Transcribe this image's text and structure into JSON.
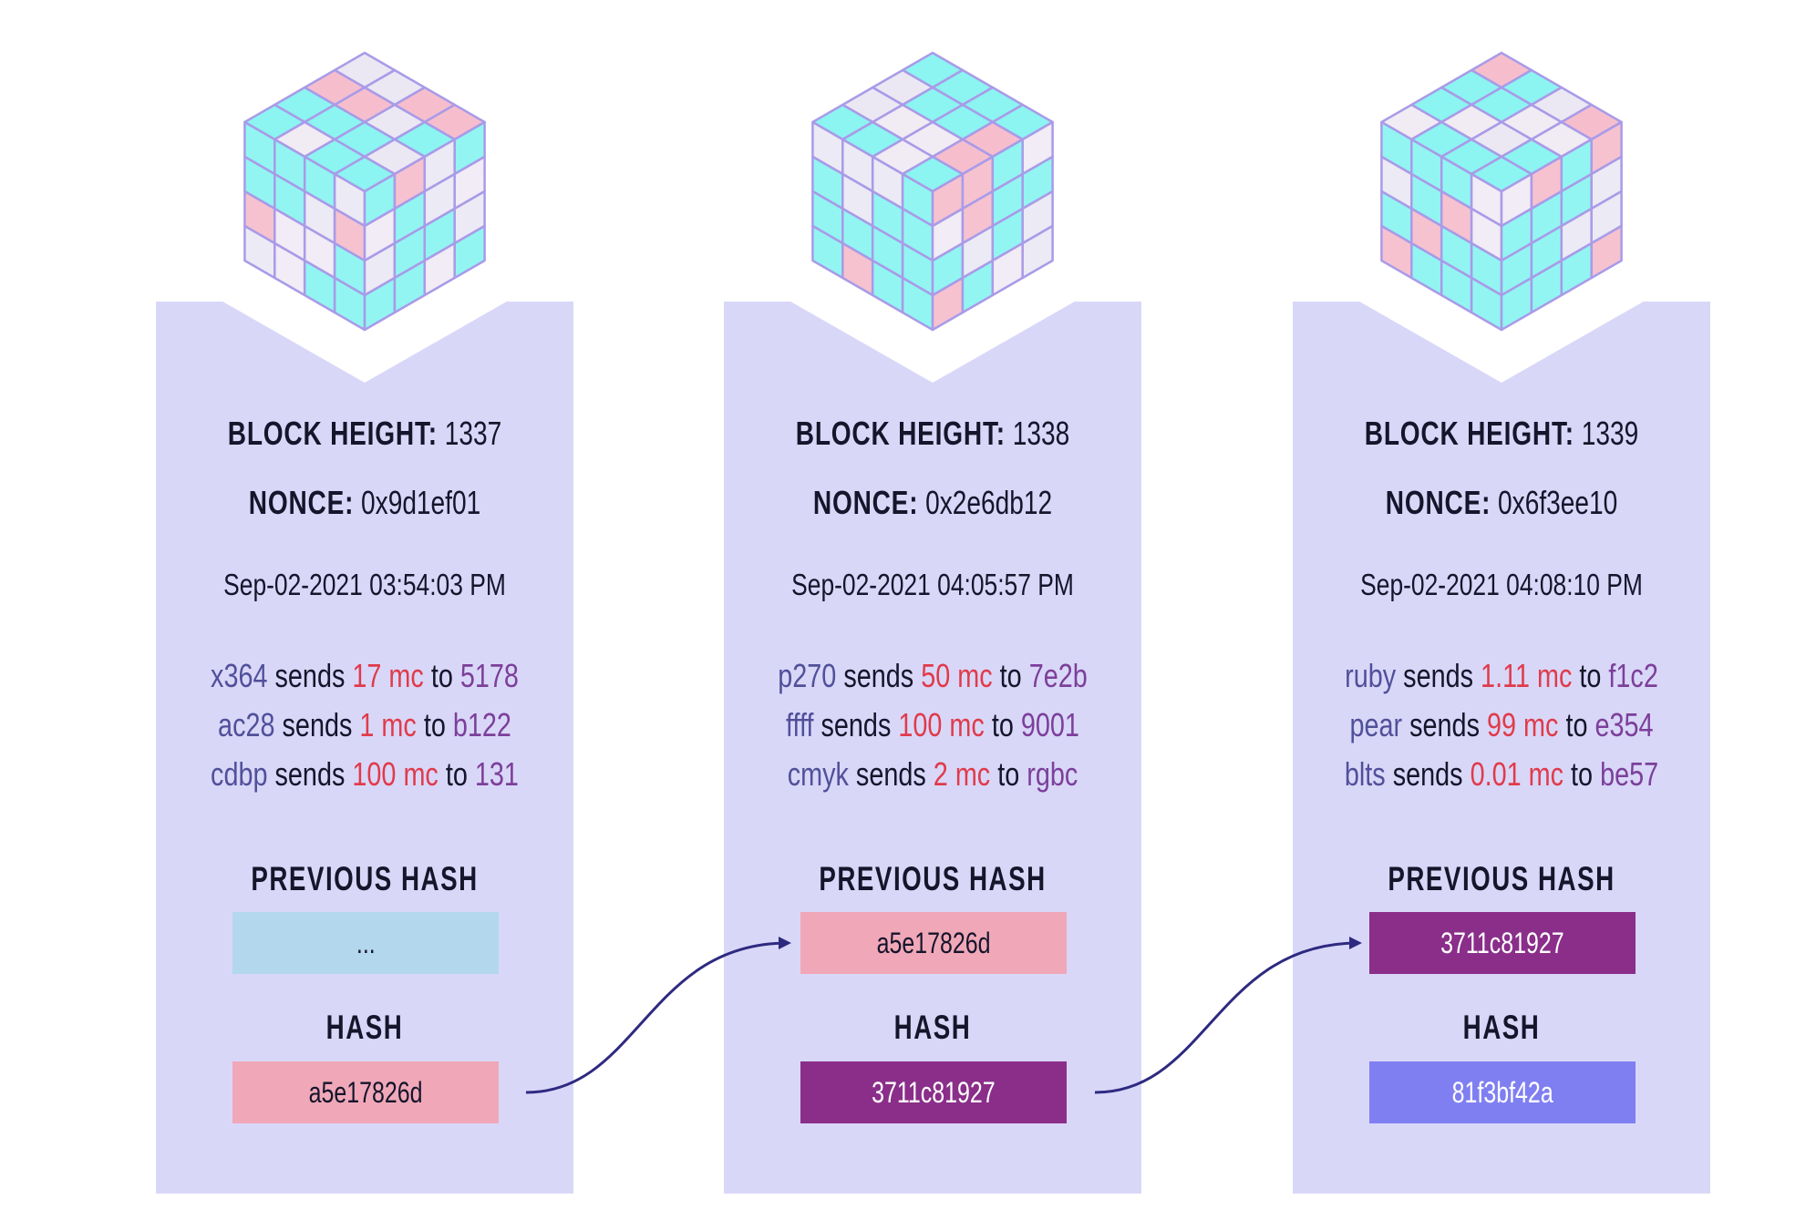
{
  "colors": {
    "block_bg": "#d9d7f8",
    "hash_blue": "#b3d8ee",
    "hash_pink": "#f0a8b8",
    "hash_purple": "#8a2e8a",
    "hash_periwinkle": "#7f7ff2",
    "arrow": "#2e2a80",
    "amount_red": "#e03b4b",
    "sender_blue": "#50509a"
  },
  "blocks": [
    {
      "height_label": "BLOCK HEIGHT:",
      "height_value": "1337",
      "nonce_label": "NONCE:",
      "nonce_value": "0x9d1ef01",
      "timestamp": "Sep-02-2021 03:54:03 PM",
      "transactions": [
        {
          "from": "x364",
          "sends": "sends",
          "amount": "17 mc",
          "to_word": "to",
          "to": "5178"
        },
        {
          "from": "ac28",
          "sends": "sends",
          "amount": "1 mc",
          "to_word": "to",
          "to": "b122"
        },
        {
          "from": "cdbp",
          "sends": "sends",
          "amount": "100 mc",
          "to_word": "to",
          "to": "131"
        }
      ],
      "previous_hash_label": "PREVIOUS HASH",
      "previous_hash": "...",
      "hash_label": "HASH",
      "hash": "a5e17826d"
    },
    {
      "height_label": "BLOCK HEIGHT:",
      "height_value": "1338",
      "nonce_label": "NONCE:",
      "nonce_value": "0x2e6db12",
      "timestamp": "Sep-02-2021 04:05:57 PM",
      "transactions": [
        {
          "from": "p270",
          "sends": "sends",
          "amount": "50 mc",
          "to_word": "to",
          "to": "7e2b"
        },
        {
          "from": "ffff",
          "sends": "sends",
          "amount": "100 mc",
          "to_word": "to",
          "to": "9001"
        },
        {
          "from": "cmyk",
          "sends": "sends",
          "amount": "2 mc",
          "to_word": "to",
          "to": "rgbc"
        }
      ],
      "previous_hash_label": "PREVIOUS HASH",
      "previous_hash": "a5e17826d",
      "hash_label": "HASH",
      "hash": "3711c81927"
    },
    {
      "height_label": "BLOCK HEIGHT:",
      "height_value": "1339",
      "nonce_label": "NONCE:",
      "nonce_value": "0x6f3ee10",
      "timestamp": "Sep-02-2021 04:08:10 PM",
      "transactions": [
        {
          "from": "ruby",
          "sends": "sends",
          "amount": "1.11 mc",
          "to_word": "to",
          "to": "f1c2"
        },
        {
          "from": "pear",
          "sends": "sends",
          "amount": "99 mc",
          "to_word": "to",
          "to": "e354"
        },
        {
          "from": "blts",
          "sends": "sends",
          "amount": "0.01 mc",
          "to_word": "to",
          "to": "be57"
        }
      ],
      "previous_hash_label": "PREVIOUS HASH",
      "previous_hash": "3711c81927",
      "hash_label": "HASH",
      "hash": "81f3bf42a"
    }
  ]
}
